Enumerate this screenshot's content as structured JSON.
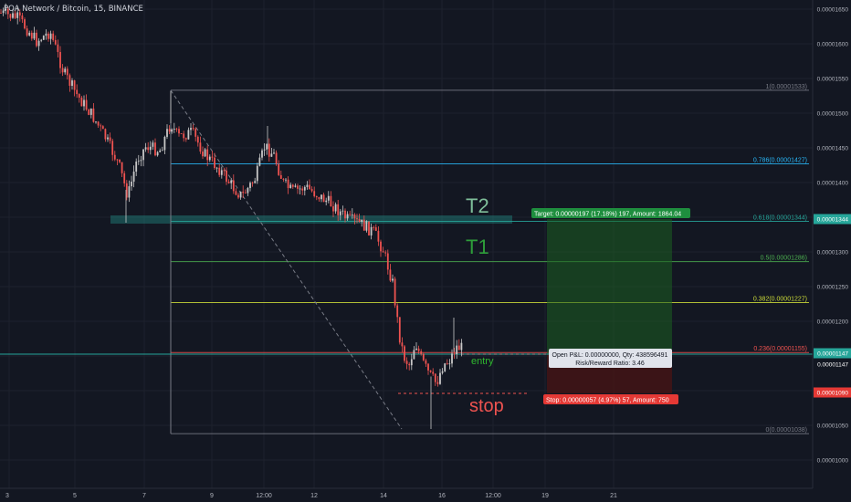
{
  "symbol_title": "POA Network / Bitcoin, 15, BINANCE",
  "colors": {
    "background": "#131722",
    "up": "#c8c8c8",
    "down": "#ef5350",
    "fib_top": "#787b86",
    "fib_786": "#29b6f6",
    "fib_618": "#26a69a",
    "fib_5": "#4caf50",
    "fib_382": "#cddc39",
    "fib_236": "#ef5350",
    "target_zone": "#1b5e20",
    "stop_zone": "#4a1414",
    "green_label": "#1e8e3e",
    "red_label": "#e53935"
  },
  "price_axis": {
    "ticks": [
      "0.00001650",
      "0.00001600",
      "0.00001550",
      "0.00001500",
      "0.00001450",
      "0.00001400",
      "0.00001350",
      "0.00001300",
      "0.00001250",
      "0.00001200",
      "0.00001150",
      "0.00001100",
      "0.00001050",
      "0.00001000"
    ],
    "current_tags": [
      {
        "text": "0.00001344",
        "color": "#26a69a"
      },
      {
        "text": "0.00001147",
        "color": "#26a69a"
      },
      {
        "text": "0.00001147",
        "color": "#131722"
      },
      {
        "text": "0.00001090",
        "color": "#e53935"
      }
    ]
  },
  "time_axis": {
    "labels": [
      "3",
      "5",
      "7",
      "9",
      "12:00",
      "12",
      "14",
      "16",
      "12:00",
      "19",
      "21"
    ]
  },
  "fib_levels": [
    {
      "label": "1(0.00001533)",
      "price": 1.533e-05,
      "color": "#787b86"
    },
    {
      "label": "0.786(0.00001427)",
      "price": 1.427e-05,
      "color": "#29b6f6"
    },
    {
      "label": "0.618(0.00001344)",
      "price": 1.344e-05,
      "color": "#26a69a"
    },
    {
      "label": "0.5(0.00001286)",
      "price": 1.286e-05,
      "color": "#4caf50"
    },
    {
      "label": "0.382(0.00001227)",
      "price": 1.227e-05,
      "color": "#cddc39"
    },
    {
      "label": "0.236(0.00001155)",
      "price": 1.155e-05,
      "color": "#ef5350"
    },
    {
      "label": "0(0.00001038)",
      "price": 1.038e-05,
      "color": "#787b86"
    }
  ],
  "annotations": {
    "t2": "T2",
    "t1": "T1",
    "entry": "entry",
    "stop": "stop"
  },
  "position": {
    "target_label": "Target: 0.00000197 (17.18%) 197, Amount: 1864.04",
    "stop_label": "Stop: 0.00000057 (4.97%) 57, Amount: 750",
    "pnl_line1": "Open P&L: 0.00000000, Qty: 438596491",
    "pnl_line2": "Risk/Reward Ratio: 3.46",
    "entry_price": 1.147e-05,
    "target_price": 1.344e-05,
    "stop_price": 1.09e-05
  }
}
